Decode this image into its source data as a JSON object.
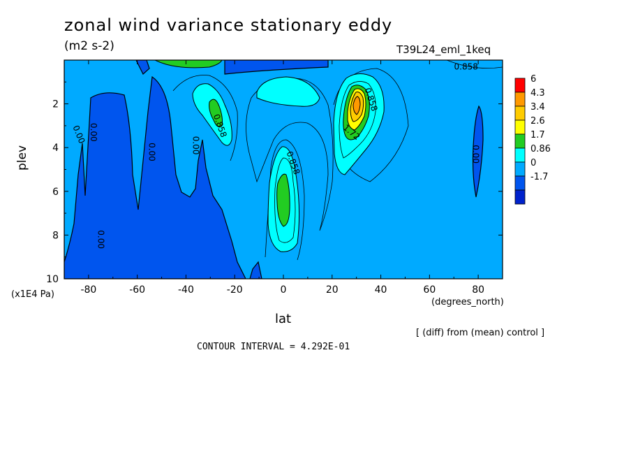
{
  "chart_data": {
    "type": "heatmap",
    "title": "zonal wind variance stationary eddy",
    "units": "(m2 s-2)",
    "experiment": "T39L24_eml_1keq",
    "xlabel": "lat",
    "xunit": "(degrees_north)",
    "ylabel": "plev",
    "yunit": "(x1E4 Pa)",
    "xlim": [
      -90,
      90
    ],
    "ylim": [
      10,
      0
    ],
    "xticks": [
      -80,
      -60,
      -40,
      -20,
      0,
      20,
      40,
      60,
      80
    ],
    "yticks": [
      2,
      4,
      6,
      8,
      10
    ],
    "colorbar": {
      "levels": [
        "6",
        "4.3",
        "3.4",
        "2.6",
        "1.7",
        "0.86",
        "0",
        "-1.7"
      ],
      "colors": [
        "#ff0000",
        "#ff9900",
        "#ffcc00",
        "#ffff00",
        "#22cc22",
        "#00ffff",
        "#00aaff",
        "#0055ee",
        "#0022cc"
      ]
    },
    "contour_labels": [
      {
        "text": "0.00",
        "lat": -84,
        "plev": 3.4,
        "angle": 68
      },
      {
        "text": "0.00",
        "lat": -78,
        "plev": 3.3,
        "angle": 90
      },
      {
        "text": "0.00",
        "lat": -54,
        "plev": 4.2,
        "angle": 90
      },
      {
        "text": "0.00",
        "lat": -36,
        "plev": 3.9,
        "angle": 90
      },
      {
        "text": "0.858",
        "lat": -26,
        "plev": 3.0,
        "angle": 70
      },
      {
        "text": "0.858",
        "lat": 4,
        "plev": 4.7,
        "angle": 70
      },
      {
        "text": "0.858",
        "lat": 36,
        "plev": 1.8,
        "angle": 72
      },
      {
        "text": "1.72",
        "lat": 28,
        "plev": 3.3,
        "angle": 40
      },
      {
        "text": "0.00",
        "lat": -75,
        "plev": 8.2,
        "angle": 90
      },
      {
        "text": "0.00",
        "lat": 79,
        "plev": 4.3,
        "angle": 90
      },
      {
        "text": "0.858",
        "lat": 75,
        "plev": 0.3,
        "angle": 0
      }
    ],
    "features": [
      {
        "name": "SH high-latitude negative region",
        "sign": "negative"
      },
      {
        "name": "equatorial maximum",
        "lat": 0,
        "plev": 6.3,
        "max_level": "1.7"
      },
      {
        "name": "NH subtropical jet maximum",
        "lat": 29,
        "plev": 2.2,
        "max_level": "4.3"
      },
      {
        "name": "SH subtropical maximum",
        "lat": -28,
        "plev": 2.3,
        "max_level": "1.7"
      }
    ]
  },
  "annotations": {
    "diff_note": "[ (diff) from (mean) control ]",
    "contour_interval": "CONTOUR INTERVAL = 4.292E-01"
  }
}
